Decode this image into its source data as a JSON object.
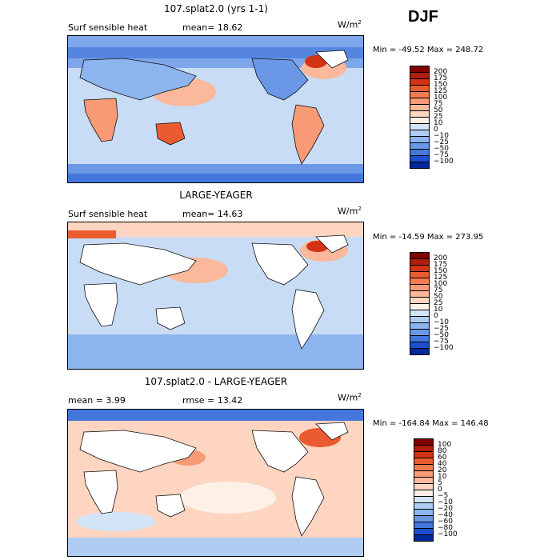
{
  "season": "DJF",
  "panels": [
    {
      "title": "107.splat2.0 (yrs 1-1)",
      "left_label": "Surf sensible heat",
      "mid_label": "mean=  18.62",
      "units": "W/m",
      "units_exp": "2",
      "minmax": "Min = -49.52  Max = 248.72",
      "colorbar": {
        "labels": [
          "200",
          "175",
          "150",
          "125",
          "100",
          "75",
          "50",
          "25",
          "10",
          "0",
          "−10",
          "−25",
          "−50",
          "−75",
          "−100"
        ],
        "colors": [
          "#800000",
          "#b01e10",
          "#d43215",
          "#ec5a30",
          "#f47a50",
          "#f89a76",
          "#fbb89b",
          "#fdd5c0",
          "#fdf0e6",
          "#d2e4f8",
          "#afcdf3",
          "#8cb4ee",
          "#6a98e6",
          "#4476dc",
          "#1c4fd0",
          "#00289a"
        ]
      }
    },
    {
      "title": "LARGE-YEAGER",
      "left_label": "Surf sensible heat",
      "mid_label": "mean=  14.63",
      "units": "W/m",
      "units_exp": "2",
      "minmax": "Min = -14.59  Max = 273.95",
      "colorbar": {
        "labels": [
          "200",
          "175",
          "150",
          "125",
          "100",
          "75",
          "50",
          "25",
          "10",
          "0",
          "−10",
          "−25",
          "−50",
          "−75",
          "−100"
        ],
        "colors": [
          "#800000",
          "#b01e10",
          "#d43215",
          "#ec5a30",
          "#f47a50",
          "#f89a76",
          "#fbb89b",
          "#fdd5c0",
          "#fdf0e6",
          "#d2e4f8",
          "#afcdf3",
          "#8cb4ee",
          "#6a98e6",
          "#4476dc",
          "#1c4fd0",
          "#00289a"
        ]
      }
    },
    {
      "title": "107.splat2.0 - LARGE-YEAGER",
      "left_label": "mean =   3.99",
      "mid_label": "rmse =  13.42",
      "units": "W/m",
      "units_exp": "2",
      "minmax": "Min = -164.84  Max = 146.48",
      "colorbar": {
        "labels": [
          "100",
          "80",
          "60",
          "40",
          "20",
          "10",
          "5",
          "0",
          "−5",
          "−10",
          "−20",
          "−40",
          "−60",
          "−80",
          "−100"
        ],
        "colors": [
          "#800000",
          "#b01e10",
          "#d43215",
          "#ec5a30",
          "#f47a50",
          "#f89a76",
          "#fbb89b",
          "#fdd5c0",
          "#fdf0e6",
          "#d2e4f8",
          "#afcdf3",
          "#8cb4ee",
          "#6a98e6",
          "#4476dc",
          "#1c4fd0",
          "#00289a"
        ]
      }
    }
  ],
  "chart_data": [
    {
      "type": "heatmap",
      "title": "107.splat2.0 (yrs 1-1)",
      "variable": "Surf sensible heat",
      "units": "W/m2",
      "mean": 18.62,
      "min": -49.52,
      "max": 248.72,
      "contour_levels": [
        -100,
        -75,
        -50,
        -25,
        -10,
        0,
        10,
        25,
        50,
        75,
        100,
        125,
        150,
        175,
        200
      ]
    },
    {
      "type": "heatmap",
      "title": "LARGE-YEAGER",
      "variable": "Surf sensible heat",
      "units": "W/m2",
      "mean": 14.63,
      "min": -14.59,
      "max": 273.95,
      "contour_levels": [
        -100,
        -75,
        -50,
        -25,
        -10,
        0,
        10,
        25,
        50,
        75,
        100,
        125,
        150,
        175,
        200
      ]
    },
    {
      "type": "heatmap",
      "title": "107.splat2.0 - LARGE-YEAGER",
      "units": "W/m2",
      "mean": 3.99,
      "rmse": 13.42,
      "min": -164.84,
      "max": 146.48,
      "contour_levels": [
        -100,
        -80,
        -60,
        -40,
        -20,
        -10,
        -5,
        0,
        5,
        10,
        20,
        40,
        60,
        80,
        100
      ]
    }
  ]
}
